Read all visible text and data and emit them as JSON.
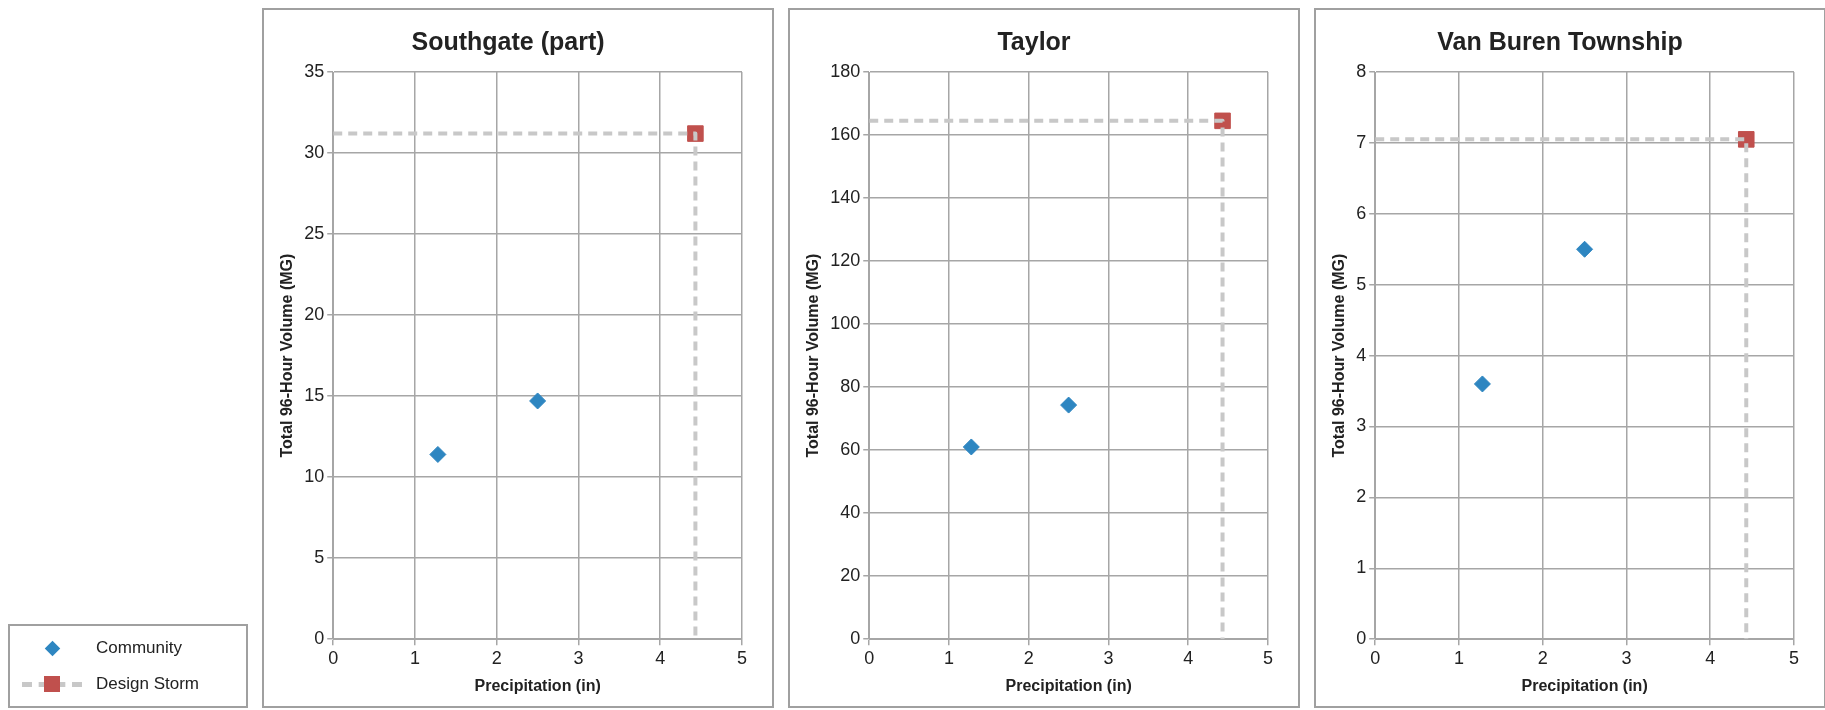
{
  "chart_data": [
    {
      "type": "scatter",
      "title": "Southgate (part)",
      "xlabel": "Precipitation (in)",
      "ylabel": "Total 96-Hour Volume (MG)",
      "xlim": [
        0,
        5
      ],
      "xticks": [
        0,
        1,
        2,
        3,
        4,
        5
      ],
      "ylim": [
        0,
        35
      ],
      "yticks": [
        0,
        5,
        10,
        15,
        20,
        25,
        30,
        35
      ],
      "grid": true,
      "legend": "bottom left",
      "series": [
        {
          "name": "Community",
          "type": "scatter",
          "color": "#2e86c1",
          "marker": "diamond",
          "x": [
            1.28,
            2.5
          ],
          "values": [
            11.4,
            14.7
          ]
        },
        {
          "name": "Design Storm",
          "type": "line",
          "color": "#c8c8c8",
          "line_style": "dashed",
          "marker": "none",
          "x": [
            0,
            4.43,
            4.43
          ],
          "values": [
            31.2,
            31.2,
            0
          ]
        },
        {
          "type": "scatter",
          "color": "#c0504d",
          "marker": "square",
          "x": [
            4.43
          ],
          "values": [
            31.2
          ]
        }
      ]
    },
    {
      "type": "scatter",
      "title": "Taylor",
      "xlabel": "Precipitation (in)",
      "ylabel": "Total 96-Hour Volume (MG)",
      "xlim": [
        0,
        5
      ],
      "xticks": [
        0,
        1,
        2,
        3,
        4,
        5
      ],
      "ylim": [
        0,
        180
      ],
      "yticks": [
        0,
        20,
        40,
        60,
        80,
        100,
        120,
        140,
        160,
        180
      ],
      "grid": true,
      "series": [
        {
          "type": "scatter",
          "color": "#2e86c1",
          "marker": "diamond",
          "x": [
            1.28,
            2.5
          ],
          "values": [
            61,
            74.3
          ]
        },
        {
          "type": "line",
          "color": "#c8c8c8",
          "line_style": "dashed",
          "marker": "none",
          "x": [
            0,
            4.43,
            4.43
          ],
          "values": [
            164.5,
            164.5,
            0
          ]
        },
        {
          "type": "scatter",
          "color": "#c0504d",
          "marker": "square",
          "x": [
            4.43
          ],
          "values": [
            164.5
          ]
        }
      ]
    },
    {
      "type": "scatter",
      "title": "Van Buren Township",
      "xlabel": "Precipitation (in)",
      "ylabel": "Total 96-Hour Volume (MG)",
      "xlim": [
        0,
        5
      ],
      "xticks": [
        0,
        1,
        2,
        3,
        4,
        5
      ],
      "ylim": [
        0,
        8
      ],
      "yticks": [
        0,
        1,
        2,
        3,
        4,
        5,
        6,
        7,
        8
      ],
      "grid": true,
      "series": [
        {
          "type": "scatter",
          "color": "#2e86c1",
          "marker": "diamond",
          "x": [
            1.28,
            2.5
          ],
          "values": [
            3.6,
            5.5
          ]
        },
        {
          "type": "line",
          "color": "#c8c8c8",
          "line_style": "dashed",
          "marker": "none",
          "x": [
            0,
            4.43,
            4.43
          ],
          "values": [
            7.05,
            7.05,
            0
          ]
        },
        {
          "type": "scatter",
          "color": "#c0504d",
          "marker": "square",
          "x": [
            4.43
          ],
          "values": [
            7.05
          ]
        }
      ]
    }
  ]
}
